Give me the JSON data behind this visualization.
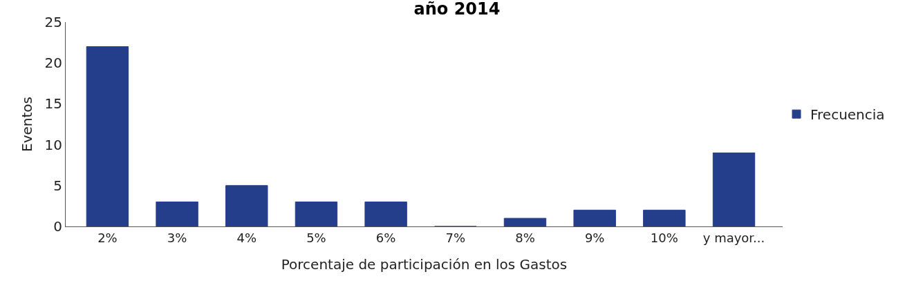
{
  "chart_data": {
    "type": "bar",
    "title": "año 2014",
    "xlabel": "Porcentaje de participación en los Gastos",
    "ylabel": "Eventos",
    "categories": [
      "2%",
      "3%",
      "4%",
      "5%",
      "6%",
      "7%",
      "8%",
      "9%",
      "10%",
      "y mayor..."
    ],
    "series": [
      {
        "name": "Frecuencia",
        "color": "#243e8c",
        "values": [
          22,
          3,
          5,
          3,
          3,
          0,
          1,
          2,
          2,
          9
        ]
      }
    ],
    "ylim": [
      0,
      25
    ],
    "yticks": [
      0,
      5,
      10,
      15,
      20,
      25
    ],
    "grid": false,
    "legend": "right"
  }
}
